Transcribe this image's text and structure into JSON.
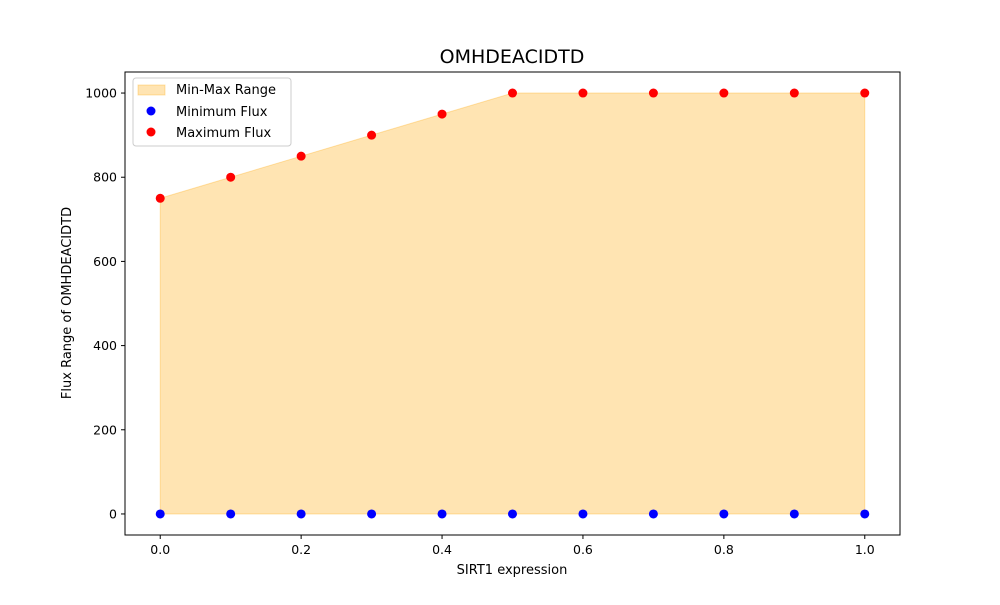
{
  "chart_data": {
    "type": "scatter",
    "title": "OMHDEACIDTD",
    "xlabel": "SIRT1 expression",
    "ylabel": "Flux Range of OMHDEACIDTD",
    "xlim": [
      -0.05,
      1.05
    ],
    "ylim": [
      -50,
      1050
    ],
    "x_ticks": [
      "0.0",
      "0.2",
      "0.4",
      "0.6",
      "0.8",
      "1.0"
    ],
    "y_ticks": [
      "0",
      "200",
      "400",
      "600",
      "800",
      "1000"
    ],
    "x": [
      0.0,
      0.1,
      0.2,
      0.3,
      0.4,
      0.5,
      0.6,
      0.7,
      0.8,
      0.9,
      1.0
    ],
    "series": [
      {
        "name": "Minimum Flux",
        "color": "#0000ff",
        "values": [
          0,
          0,
          0,
          0,
          0,
          0,
          0,
          0,
          0,
          0,
          0
        ]
      },
      {
        "name": "Maximum Flux",
        "color": "#ff0000",
        "values": [
          750,
          800,
          850,
          900,
          950,
          1000,
          1000,
          1000,
          1000,
          1000,
          1000
        ]
      }
    ],
    "fill": {
      "name": "Min-Max Range",
      "color": "#ffa500",
      "alpha": 0.3
    },
    "legend_position": "top-left",
    "grid": false
  }
}
